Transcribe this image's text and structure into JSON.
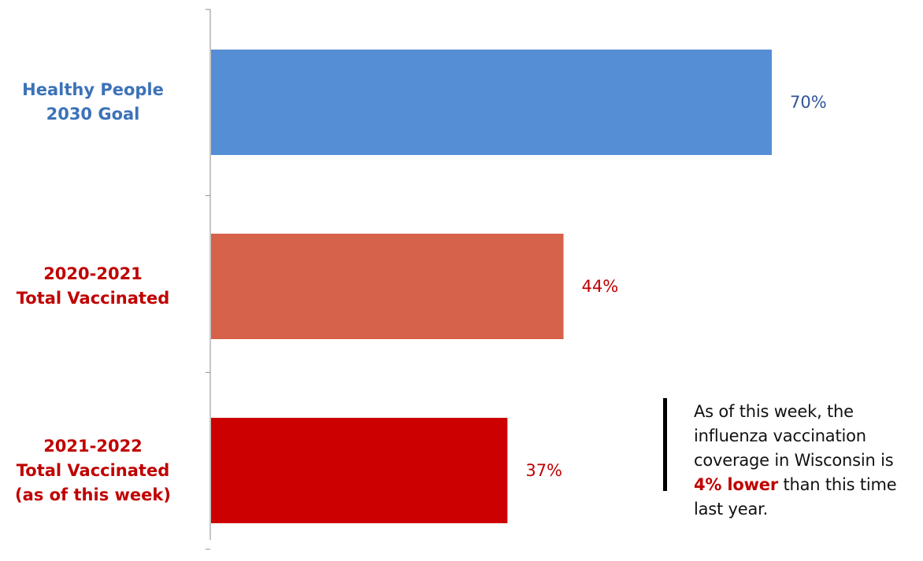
{
  "chart_data": {
    "type": "bar",
    "orientation": "horizontal",
    "categories": [
      {
        "lines": [
          "Healthy People",
          "2030 Goal"
        ],
        "value": 70,
        "value_label": "70%",
        "bar_color": "#558ed5",
        "label_color": "#3c72b8",
        "value_color": "#2f5597"
      },
      {
        "lines": [
          "2020-2021",
          "Total Vaccinated"
        ],
        "value": 44,
        "value_label": "44%",
        "bar_color": "#d6624a",
        "label_color": "#c00000",
        "value_color": "#c00000"
      },
      {
        "lines": [
          "2021-2022",
          "Total Vaccinated",
          "(as of this week)"
        ],
        "value": 37,
        "value_label": "37%",
        "bar_color": "#cc0000",
        "label_color": "#c00000",
        "value_color": "#c00000"
      }
    ],
    "xlim": [
      0,
      100
    ],
    "grid": false,
    "legend": "none"
  },
  "annotation": {
    "before": "As of this week, the influenza vaccination coverage in Wisconsin is",
    "highlight": "4% lower",
    "after": "than this time last year.",
    "highlight_color": "#c00000"
  }
}
